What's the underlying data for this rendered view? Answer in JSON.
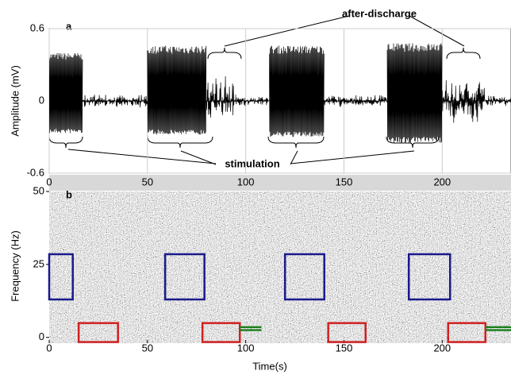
{
  "chart_data": [
    {
      "type": "trace",
      "panel": "a",
      "ylabel": "Amplitude (mV)",
      "xlim": [
        0,
        235
      ],
      "ylim": [
        -0.6,
        0.6
      ],
      "xticks": [
        0,
        50,
        100,
        150,
        200
      ],
      "yticks": [
        0.6,
        0,
        -0.6
      ],
      "grid": true,
      "color": "#000000",
      "segments": [
        {
          "start": 0,
          "end": 17,
          "upper": 0.4,
          "lower": -0.27
        },
        {
          "start": 17,
          "end": 50,
          "upper": 0.06,
          "lower": -0.06
        },
        {
          "start": 50,
          "end": 80,
          "upper": 0.46,
          "lower": -0.28
        },
        {
          "start": 80,
          "end": 95,
          "upper": 0.22,
          "lower": -0.2
        },
        {
          "start": 95,
          "end": 112,
          "upper": 0.05,
          "lower": -0.05
        },
        {
          "start": 112,
          "end": 140,
          "upper": 0.46,
          "lower": -0.3
        },
        {
          "start": 140,
          "end": 172,
          "upper": 0.06,
          "lower": -0.06
        },
        {
          "start": 172,
          "end": 200,
          "upper": 0.48,
          "lower": -0.35
        },
        {
          "start": 200,
          "end": 222,
          "upper": 0.2,
          "lower": -0.22
        },
        {
          "start": 222,
          "end": 235,
          "upper": 0.05,
          "lower": -0.05
        }
      ],
      "annotations": [
        "after-discharge",
        "stimulation"
      ]
    },
    {
      "type": "spectrogram",
      "panel": "b",
      "xlabel": "Time(s)",
      "ylabel": "Frequency (Hz)",
      "xlim": [
        0,
        235
      ],
      "ylim": [
        -2,
        50
      ],
      "xticks": [
        0,
        50,
        100,
        150,
        200
      ],
      "yticks": [
        0,
        25,
        50
      ],
      "boxes": [
        {
          "x0": 0,
          "x1": 12,
          "y0": 13,
          "y1": 28.5,
          "color": "#1a1a8c"
        },
        {
          "x0": 59,
          "x1": 79,
          "y0": 13,
          "y1": 28.5,
          "color": "#1a1a8c"
        },
        {
          "x0": 120,
          "x1": 140,
          "y0": 13,
          "y1": 28.5,
          "color": "#1a1a8c"
        },
        {
          "x0": 183,
          "x1": 204,
          "y0": 13,
          "y1": 28.5,
          "color": "#1a1a8c"
        },
        {
          "x0": 15,
          "x1": 35,
          "y0": -1.6,
          "y1": 4.9,
          "color": "#d02020"
        },
        {
          "x0": 78,
          "x1": 97,
          "y0": -1.6,
          "y1": 4.9,
          "color": "#d02020"
        },
        {
          "x0": 142,
          "x1": 161,
          "y0": -1.6,
          "y1": 4.9,
          "color": "#d02020"
        },
        {
          "x0": 203,
          "x1": 222,
          "y0": -1.6,
          "y1": 4.9,
          "color": "#d02020"
        }
      ],
      "lines": [
        {
          "x0": 97,
          "x1": 108,
          "y": 3.5,
          "color": "#208020"
        },
        {
          "x0": 97,
          "x1": 108,
          "y": 2.5,
          "color": "#208020"
        },
        {
          "x0": 222,
          "x1": 235,
          "y": 3.5,
          "color": "#208020"
        },
        {
          "x0": 222,
          "x1": 235,
          "y": 2.5,
          "color": "#208020"
        }
      ]
    }
  ]
}
